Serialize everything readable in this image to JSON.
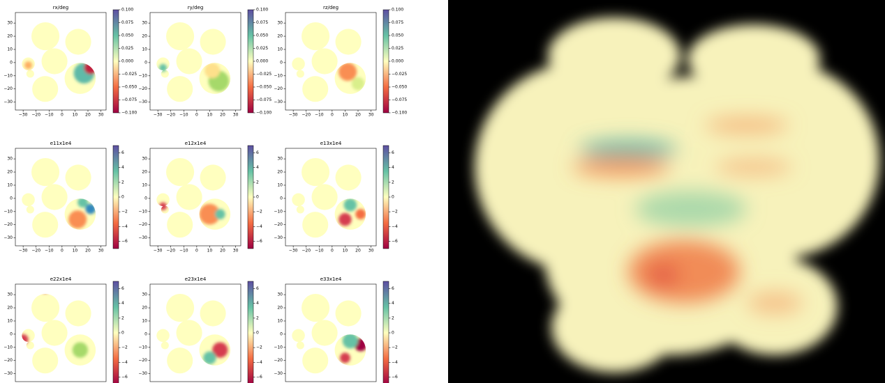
{
  "chart_data": [
    {
      "type": "heatmap",
      "title": "rx/deg",
      "xlim": [
        -36,
        34
      ],
      "ylim": [
        -36,
        38
      ],
      "xticks": [
        {
          "value": -30,
          "label": "−30"
        },
        {
          "value": -20,
          "label": "−20"
        },
        {
          "value": -10,
          "label": "−10"
        },
        0,
        10,
        20,
        30
      ],
      "yticks": [
        30,
        20,
        10,
        0,
        {
          "value": -10,
          "label": "−10"
        },
        {
          "value": -20,
          "label": "−20"
        },
        {
          "value": -30,
          "label": "−30"
        }
      ],
      "clim": [
        -0.1,
        0.1
      ],
      "cticks": [
        {
          "value": 0.1,
          "label": "0.100"
        },
        {
          "value": 0.075,
          "label": "0.075"
        },
        {
          "value": 0.05,
          "label": "0.050"
        },
        {
          "value": 0.025,
          "label": "0.025"
        },
        {
          "value": 0,
          "label": "0.000"
        },
        {
          "value": -0.025,
          "label": "−0.025"
        },
        {
          "value": -0.05,
          "label": "−0.050"
        },
        {
          "value": -0.075,
          "label": "−0.075"
        },
        {
          "value": -0.1,
          "label": "−0.100"
        }
      ],
      "colormap": [
        "#9e0142",
        "#f46d43",
        "#ffffbf",
        "#66c2a5",
        "#5e4fa2"
      ]
    },
    {
      "type": "heatmap",
      "title": "ry/deg",
      "xlim": [
        -36,
        34
      ],
      "ylim": [
        -36,
        38
      ],
      "xticks": [
        {
          "value": -30,
          "label": "−30"
        },
        {
          "value": -20,
          "label": "−20"
        },
        {
          "value": -10,
          "label": "−10"
        },
        0,
        10,
        20,
        30
      ],
      "yticks": [
        30,
        20,
        10,
        0,
        {
          "value": -10,
          "label": "−10"
        },
        {
          "value": -20,
          "label": "−20"
        },
        {
          "value": -30,
          "label": "−30"
        }
      ],
      "clim": [
        -0.1,
        0.1
      ],
      "cticks": [
        {
          "value": 0.1,
          "label": "0.100"
        },
        {
          "value": 0.075,
          "label": "0.075"
        },
        {
          "value": 0.05,
          "label": "0.050"
        },
        {
          "value": 0.025,
          "label": "0.025"
        },
        {
          "value": 0,
          "label": "0.000"
        },
        {
          "value": -0.025,
          "label": "−0.025"
        },
        {
          "value": -0.05,
          "label": "−0.050"
        },
        {
          "value": -0.075,
          "label": "−0.075"
        },
        {
          "value": -0.1,
          "label": "−0.100"
        }
      ],
      "colormap": [
        "#9e0142",
        "#f46d43",
        "#ffffbf",
        "#66c2a5",
        "#5e4fa2"
      ]
    },
    {
      "type": "heatmap",
      "title": "rz/deg",
      "xlim": [
        -36,
        34
      ],
      "ylim": [
        -36,
        38
      ],
      "xticks": [
        {
          "value": -30,
          "label": "−30"
        },
        {
          "value": -20,
          "label": "−20"
        },
        {
          "value": -10,
          "label": "−10"
        },
        0,
        10,
        20,
        30
      ],
      "yticks": [
        30,
        20,
        10,
        0,
        {
          "value": -10,
          "label": "−10"
        },
        {
          "value": -20,
          "label": "−20"
        },
        {
          "value": -30,
          "label": "−30"
        }
      ],
      "clim": [
        -0.1,
        0.1
      ],
      "cticks": [
        {
          "value": 0.1,
          "label": "0.100"
        },
        {
          "value": 0.075,
          "label": "0.075"
        },
        {
          "value": 0.05,
          "label": "0.050"
        },
        {
          "value": 0.025,
          "label": "0.025"
        },
        {
          "value": 0,
          "label": "0.000"
        },
        {
          "value": -0.025,
          "label": "−0.025"
        },
        {
          "value": -0.05,
          "label": "−0.050"
        },
        {
          "value": -0.075,
          "label": "−0.075"
        },
        {
          "value": -0.1,
          "label": "−0.100"
        }
      ],
      "colormap": [
        "#9e0142",
        "#f46d43",
        "#ffffbf",
        "#66c2a5",
        "#5e4fa2"
      ]
    },
    {
      "type": "heatmap",
      "title": "e11x1e4",
      "xlim": [
        -36,
        34
      ],
      "ylim": [
        -36,
        38
      ],
      "xticks": [
        {
          "value": -30,
          "label": "−30"
        },
        {
          "value": -20,
          "label": "−20"
        },
        {
          "value": -10,
          "label": "−10"
        },
        0,
        10,
        20,
        30
      ],
      "yticks": [
        30,
        20,
        10,
        0,
        {
          "value": -10,
          "label": "−10"
        },
        {
          "value": -20,
          "label": "−20"
        },
        {
          "value": -30,
          "label": "−30"
        }
      ],
      "clim": [
        -7,
        7
      ],
      "cticks": [
        6,
        4,
        2,
        0,
        {
          "value": -2,
          "label": "−2"
        },
        {
          "value": -4,
          "label": "−4"
        },
        {
          "value": -6,
          "label": "−6"
        }
      ],
      "colormap": [
        "#9e0142",
        "#f46d43",
        "#ffffbf",
        "#66c2a5",
        "#5e4fa2"
      ]
    },
    {
      "type": "heatmap",
      "title": "e12x1e4",
      "xlim": [
        -36,
        34
      ],
      "ylim": [
        -36,
        38
      ],
      "xticks": [
        {
          "value": -30,
          "label": "−30"
        },
        {
          "value": -20,
          "label": "−20"
        },
        {
          "value": -10,
          "label": "−10"
        },
        0,
        10,
        20,
        30
      ],
      "yticks": [
        30,
        20,
        10,
        0,
        {
          "value": -10,
          "label": "−10"
        },
        {
          "value": -20,
          "label": "−20"
        },
        {
          "value": -30,
          "label": "−30"
        }
      ],
      "clim": [
        -7,
        7
      ],
      "cticks": [
        6,
        4,
        2,
        0,
        {
          "value": -2,
          "label": "−2"
        },
        {
          "value": -4,
          "label": "−4"
        },
        {
          "value": -6,
          "label": "−6"
        }
      ],
      "colormap": [
        "#9e0142",
        "#f46d43",
        "#ffffbf",
        "#66c2a5",
        "#5e4fa2"
      ]
    },
    {
      "type": "heatmap",
      "title": "e13x1e4",
      "xlim": [
        -36,
        34
      ],
      "ylim": [
        -36,
        38
      ],
      "xticks": [
        {
          "value": -30,
          "label": "−30"
        },
        {
          "value": -20,
          "label": "−20"
        },
        {
          "value": -10,
          "label": "−10"
        },
        0,
        10,
        20,
        30
      ],
      "yticks": [
        30,
        20,
        10,
        0,
        {
          "value": -10,
          "label": "−10"
        },
        {
          "value": -20,
          "label": "−20"
        },
        {
          "value": -30,
          "label": "−30"
        }
      ],
      "clim": [
        -7,
        7
      ],
      "cticks": [
        6,
        4,
        2,
        0,
        {
          "value": -2,
          "label": "−2"
        },
        {
          "value": -4,
          "label": "−4"
        },
        {
          "value": -6,
          "label": "−6"
        }
      ],
      "colormap": [
        "#9e0142",
        "#f46d43",
        "#ffffbf",
        "#66c2a5",
        "#5e4fa2"
      ]
    },
    {
      "type": "heatmap",
      "title": "e22x1e4",
      "xlim": [
        -36,
        34
      ],
      "ylim": [
        -36,
        38
      ],
      "yticks": [
        30,
        20,
        10,
        0,
        {
          "value": -10,
          "label": "−10"
        },
        {
          "value": -20,
          "label": "−20"
        },
        {
          "value": -30,
          "label": "−30"
        }
      ],
      "clim": [
        -7,
        7
      ],
      "cticks": [
        6,
        4,
        2,
        0,
        {
          "value": -2,
          "label": "−2"
        },
        {
          "value": -4,
          "label": "−4"
        },
        {
          "value": -6,
          "label": "−6"
        }
      ],
      "colormap": [
        "#9e0142",
        "#f46d43",
        "#ffffbf",
        "#66c2a5",
        "#5e4fa2"
      ]
    },
    {
      "type": "heatmap",
      "title": "e23x1e4",
      "xlim": [
        -36,
        34
      ],
      "ylim": [
        -36,
        38
      ],
      "yticks": [
        30,
        20,
        10,
        0,
        {
          "value": -10,
          "label": "−10"
        },
        {
          "value": -20,
          "label": "−20"
        },
        {
          "value": -30,
          "label": "−30"
        }
      ],
      "clim": [
        -7,
        7
      ],
      "cticks": [
        6,
        4,
        2,
        0,
        {
          "value": -2,
          "label": "−2"
        },
        {
          "value": -4,
          "label": "−4"
        },
        {
          "value": -6,
          "label": "−6"
        }
      ],
      "colormap": [
        "#9e0142",
        "#f46d43",
        "#ffffbf",
        "#66c2a5",
        "#5e4fa2"
      ]
    },
    {
      "type": "heatmap",
      "title": "e33x1e4",
      "xlim": [
        -36,
        34
      ],
      "ylim": [
        -36,
        38
      ],
      "yticks": [
        30,
        20,
        10,
        0,
        {
          "value": -10,
          "label": "−10"
        },
        {
          "value": -20,
          "label": "−20"
        },
        {
          "value": -30,
          "label": "−30"
        }
      ],
      "clim": [
        -7,
        7
      ],
      "cticks": [
        6,
        4,
        2,
        0,
        {
          "value": -2,
          "label": "−2"
        },
        {
          "value": -4,
          "label": "−4"
        },
        {
          "value": -6,
          "label": "−6"
        }
      ],
      "colormap": [
        "#9e0142",
        "#f46d43",
        "#ffffbf",
        "#66c2a5",
        "#5e4fa2"
      ]
    }
  ]
}
